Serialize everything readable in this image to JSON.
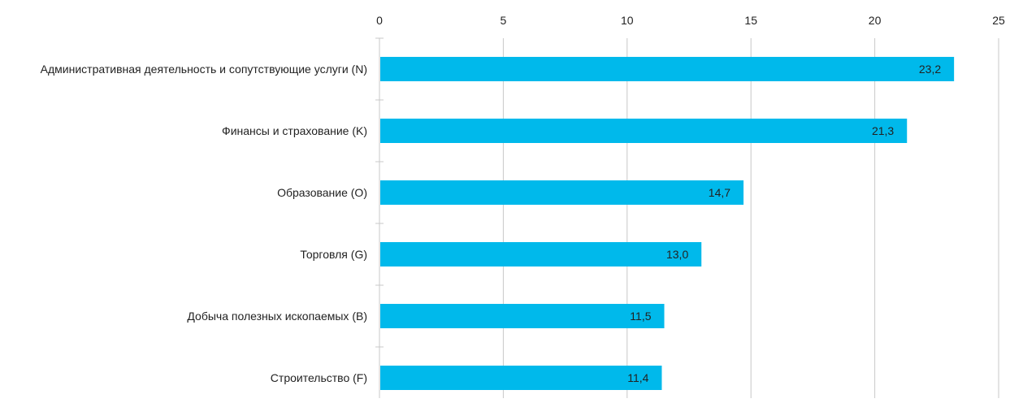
{
  "chart_data": {
    "type": "bar",
    "orientation": "horizontal",
    "categories": [
      "Административная деятельность и сопутствующие услуги (N)",
      "Финансы и страхование (K)",
      "Образование (O)",
      "Торговля (G)",
      "Добыча полезных ископаемых (B)",
      "Строительство (F)"
    ],
    "values": [
      23.2,
      21.3,
      14.7,
      13.0,
      11.5,
      11.4
    ],
    "value_labels": [
      "23,2",
      "21,3",
      "14,7",
      "13,0",
      "11,5",
      "11,4"
    ],
    "xlim": [
      0,
      25
    ],
    "x_ticks": [
      0,
      5,
      10,
      15,
      20,
      25
    ],
    "x_tick_labels": [
      "0",
      "5",
      "10",
      "15",
      "20",
      "25"
    ],
    "x_axis_position": "top",
    "grid": true,
    "legend": false,
    "title": "",
    "xlabel": "",
    "ylabel": "",
    "bar_color": "#00b9eb"
  }
}
